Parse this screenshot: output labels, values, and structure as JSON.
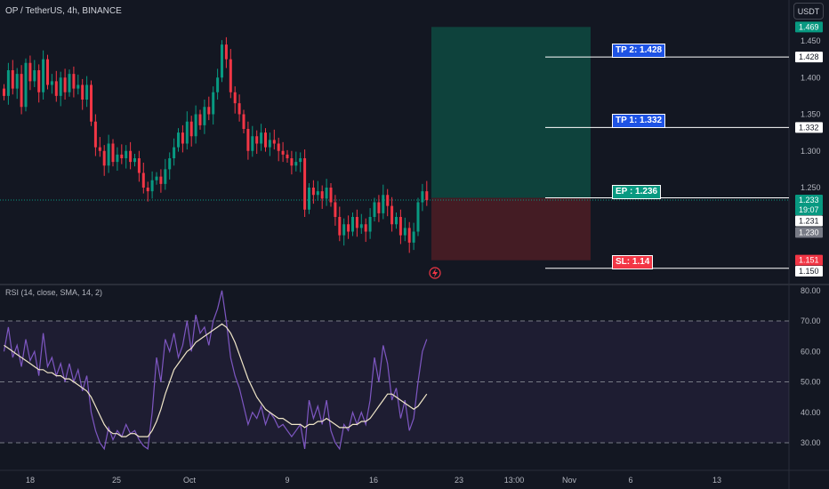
{
  "header": {
    "symbol_title": "OP / TetherUS, 4h, BINANCE",
    "currency_button": "USDT"
  },
  "rsi_panel": {
    "title": "RSI (14, close, SMA, 14, 2)"
  },
  "price_axis": {
    "ticks": [
      "1.450",
      "1.400",
      "1.350",
      "1.300",
      "1.250"
    ],
    "badges": [
      {
        "label": "1.469",
        "value": 1.469,
        "bg": "#089981",
        "fg": "#ffffff"
      },
      {
        "label": "1.428",
        "value": 1.428,
        "bg": "#ffffff",
        "fg": "#131722"
      },
      {
        "label": "1.332",
        "value": 1.332,
        "bg": "#ffffff",
        "fg": "#131722"
      },
      {
        "label": "1.233",
        "value": 1.233,
        "bg": "#089981",
        "fg": "#ffffff"
      },
      {
        "label": "19:07",
        "value": 1.2195,
        "bg": "#089981",
        "fg": "#ffffff"
      },
      {
        "label": "1.231",
        "value": 1.2045,
        "bg": "#ffffff",
        "fg": "#131722"
      },
      {
        "label": "1.230",
        "value": 1.189,
        "bg": "#787b86",
        "fg": "#ffffff"
      },
      {
        "label": "1.151",
        "value": 1.151,
        "bg": "#f23645",
        "fg": "#ffffff"
      },
      {
        "label": "1.150",
        "value": 1.136,
        "bg": "#ffffff",
        "fg": "#131722"
      }
    ]
  },
  "rsi_axis": {
    "ticks": [
      "80.00",
      "70.00",
      "60.00",
      "50.00",
      "40.00",
      "30.00"
    ]
  },
  "time_axis": {
    "ticks": [
      "18",
      "25",
      "Oct",
      "9",
      "16",
      "23",
      "13:00",
      "Nov",
      "6",
      "13"
    ]
  },
  "trade_levels": [
    {
      "label": "TP 2: 1.428",
      "value": 1.428,
      "bg": "#1e53e5"
    },
    {
      "label": "TP 1: 1.332",
      "value": 1.332,
      "bg": "#1e53e5"
    },
    {
      "label": "EP : 1.236",
      "value": 1.236,
      "bg": "#089981"
    },
    {
      "label": "SL: 1.14",
      "value": 1.14,
      "bg": "#f23645"
    }
  ],
  "colors": {
    "up": "#089981",
    "down": "#f23645",
    "rsi": "#7e57c2",
    "rsi_ma": "#f0e6c8",
    "profit_zone": "#0e4a41",
    "loss_zone": "#4d1d25"
  },
  "chart_data": {
    "type": "candlestick",
    "ylim": [
      1.14,
      1.48
    ],
    "rsi_ylim": [
      25,
      85
    ],
    "rsi_bands": [
      70,
      50,
      30
    ],
    "position": {
      "entry": 1.236,
      "take_profit": 1.469,
      "stop_loss": 1.151
    },
    "price_points": [
      [
        0,
        1.375
      ],
      [
        1,
        1.41
      ],
      [
        2,
        1.385
      ],
      [
        3,
        1.405
      ],
      [
        4,
        1.36
      ],
      [
        5,
        1.42
      ],
      [
        6,
        1.395
      ],
      [
        7,
        1.41
      ],
      [
        8,
        1.38
      ],
      [
        9,
        1.425
      ],
      [
        10,
        1.39
      ],
      [
        11,
        1.395
      ],
      [
        12,
        1.375
      ],
      [
        13,
        1.4
      ],
      [
        14,
        1.38
      ],
      [
        15,
        1.405
      ],
      [
        16,
        1.385
      ],
      [
        17,
        1.39
      ],
      [
        18,
        1.37
      ],
      [
        19,
        1.39
      ],
      [
        20,
        1.34
      ],
      [
        21,
        1.305
      ],
      [
        22,
        1.3
      ],
      [
        23,
        1.28
      ],
      [
        24,
        1.31
      ],
      [
        25,
        1.285
      ],
      [
        26,
        1.295
      ],
      [
        27,
        1.29
      ],
      [
        28,
        1.3
      ],
      [
        29,
        1.285
      ],
      [
        30,
        1.29
      ],
      [
        31,
        1.27
      ],
      [
        32,
        1.25
      ],
      [
        33,
        1.245
      ],
      [
        34,
        1.26
      ],
      [
        35,
        1.265
      ],
      [
        36,
        1.255
      ],
      [
        37,
        1.275
      ],
      [
        38,
        1.29
      ],
      [
        39,
        1.305
      ],
      [
        40,
        1.325
      ],
      [
        41,
        1.31
      ],
      [
        42,
        1.34
      ],
      [
        43,
        1.32
      ],
      [
        44,
        1.35
      ],
      [
        45,
        1.335
      ],
      [
        46,
        1.36
      ],
      [
        47,
        1.35
      ],
      [
        48,
        1.38
      ],
      [
        49,
        1.4
      ],
      [
        50,
        1.445
      ],
      [
        51,
        1.425
      ],
      [
        52,
        1.38
      ],
      [
        53,
        1.365
      ],
      [
        54,
        1.35
      ],
      [
        55,
        1.33
      ],
      [
        56,
        1.3
      ],
      [
        57,
        1.32
      ],
      [
        58,
        1.31
      ],
      [
        59,
        1.325
      ],
      [
        60,
        1.305
      ],
      [
        61,
        1.315
      ],
      [
        62,
        1.31
      ],
      [
        63,
        1.3
      ],
      [
        64,
        1.295
      ],
      [
        65,
        1.29
      ],
      [
        66,
        1.28
      ],
      [
        67,
        1.285
      ],
      [
        68,
        1.29
      ],
      [
        69,
        1.22
      ],
      [
        70,
        1.25
      ],
      [
        71,
        1.24
      ],
      [
        72,
        1.245
      ],
      [
        73,
        1.235
      ],
      [
        74,
        1.25
      ],
      [
        75,
        1.23
      ],
      [
        76,
        1.21
      ],
      [
        77,
        1.185
      ],
      [
        78,
        1.2
      ],
      [
        79,
        1.19
      ],
      [
        80,
        1.21
      ],
      [
        81,
        1.195
      ],
      [
        82,
        1.2
      ],
      [
        83,
        1.19
      ],
      [
        84,
        1.21
      ],
      [
        85,
        1.23
      ],
      [
        86,
        1.215
      ],
      [
        87,
        1.24
      ],
      [
        88,
        1.225
      ],
      [
        89,
        1.2
      ],
      [
        90,
        1.21
      ],
      [
        91,
        1.185
      ],
      [
        92,
        1.195
      ],
      [
        93,
        1.175
      ],
      [
        94,
        1.19
      ],
      [
        95,
        1.23
      ],
      [
        96,
        1.245
      ],
      [
        97,
        1.233
      ]
    ],
    "rsi": [
      60,
      68,
      58,
      62,
      55,
      64,
      57,
      60,
      52,
      66,
      55,
      58,
      52,
      56,
      50,
      56,
      50,
      54,
      47,
      52,
      40,
      34,
      30,
      28,
      35,
      31,
      34,
      32,
      36,
      33,
      34,
      31,
      29,
      28,
      40,
      58,
      50,
      64,
      60,
      66,
      58,
      62,
      70,
      60,
      72,
      66,
      68,
      62,
      70,
      74,
      80,
      70,
      58,
      52,
      48,
      42,
      36,
      40,
      38,
      42,
      36,
      40,
      38,
      35,
      36,
      34,
      32,
      34,
      36,
      28,
      44,
      38,
      42,
      36,
      44,
      34,
      30,
      28,
      36,
      34,
      40,
      36,
      40,
      36,
      44,
      58,
      50,
      62,
      56,
      44,
      48,
      38,
      44,
      34,
      38,
      50,
      60,
      64
    ],
    "rsi_ma": [
      62,
      61,
      60,
      59,
      58,
      57,
      56,
      55,
      54,
      54,
      53,
      53,
      52,
      52,
      51,
      51,
      50,
      49,
      48,
      47,
      45,
      42,
      39,
      36,
      34,
      33,
      33,
      32,
      32,
      33,
      33,
      32,
      32,
      32,
      34,
      37,
      41,
      46,
      50,
      54,
      56,
      58,
      60,
      61,
      63,
      64,
      65,
      66,
      67,
      68,
      69,
      68,
      66,
      63,
      59,
      55,
      51,
      48,
      45,
      43,
      41,
      40,
      39,
      38,
      38,
      37,
      36,
      36,
      36,
      35,
      36,
      36,
      37,
      37,
      38,
      37,
      36,
      35,
      35,
      35,
      36,
      36,
      37,
      37,
      38,
      40,
      42,
      44,
      46,
      46,
      45,
      44,
      43,
      42,
      41,
      42,
      44,
      46
    ]
  }
}
